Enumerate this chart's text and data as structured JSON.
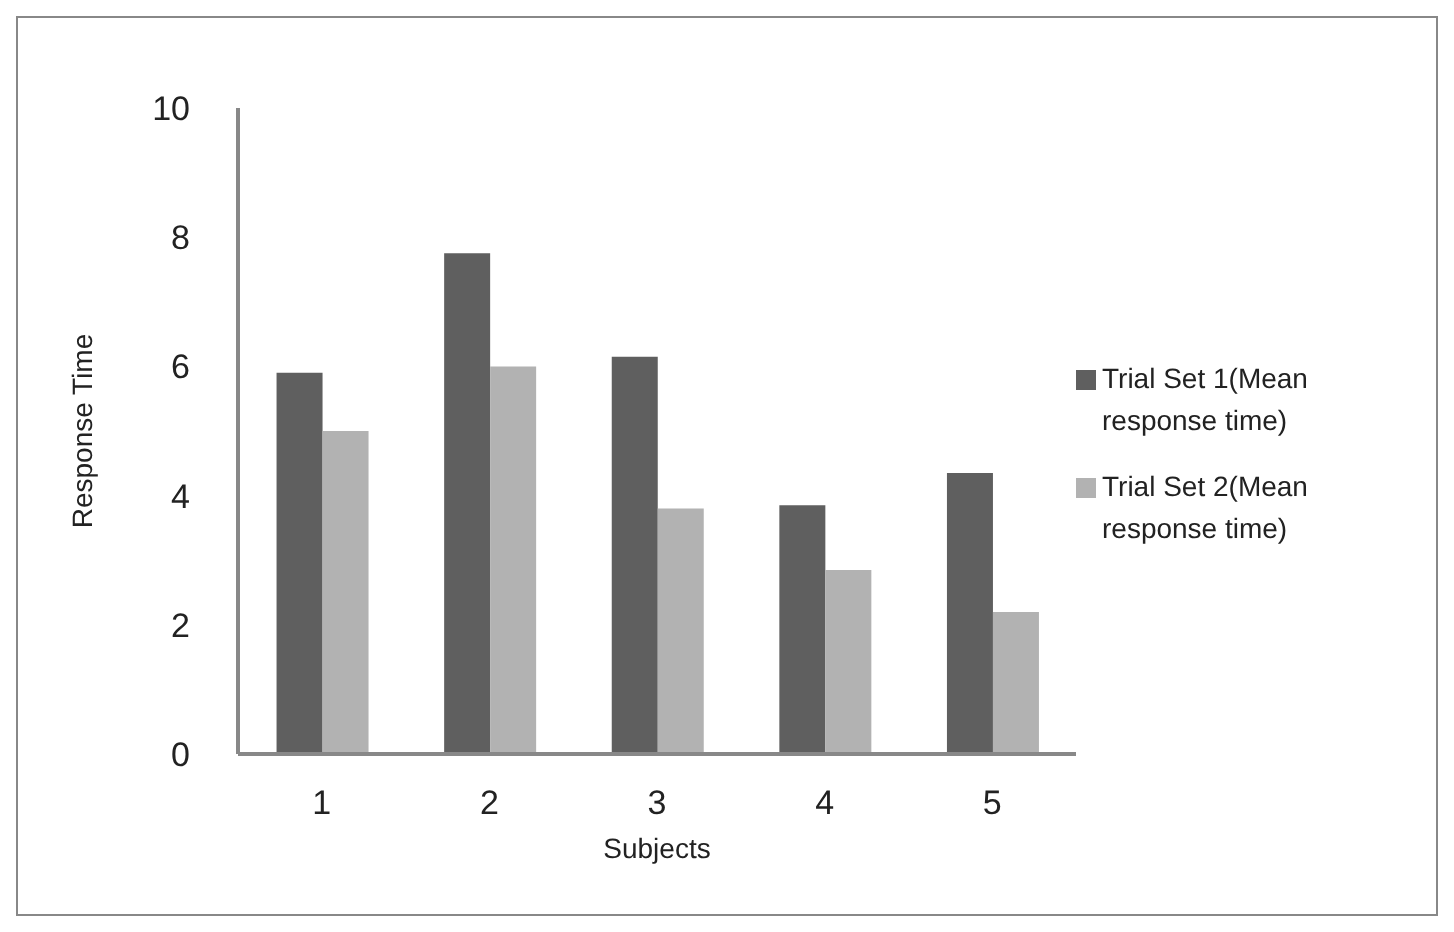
{
  "chart_data": {
    "type": "bar",
    "xlabel": "Subjects",
    "ylabel": "Response Time",
    "categories": [
      "1",
      "2",
      "3",
      "4",
      "5"
    ],
    "series": [
      {
        "name": "Trial Set 1(Mean response time)",
        "color": "#5f5f5f",
        "values": [
          5.9,
          7.75,
          6.15,
          3.85,
          4.35
        ]
      },
      {
        "name": "Trial Set 2(Mean response time)",
        "color": "#b2b2b2",
        "values": [
          5.0,
          6.0,
          3.8,
          2.85,
          2.2
        ]
      }
    ],
    "ylim": [
      0,
      10
    ],
    "yticks": [
      0,
      2,
      4,
      6,
      8,
      10
    ],
    "grid": false,
    "legend": "right"
  }
}
